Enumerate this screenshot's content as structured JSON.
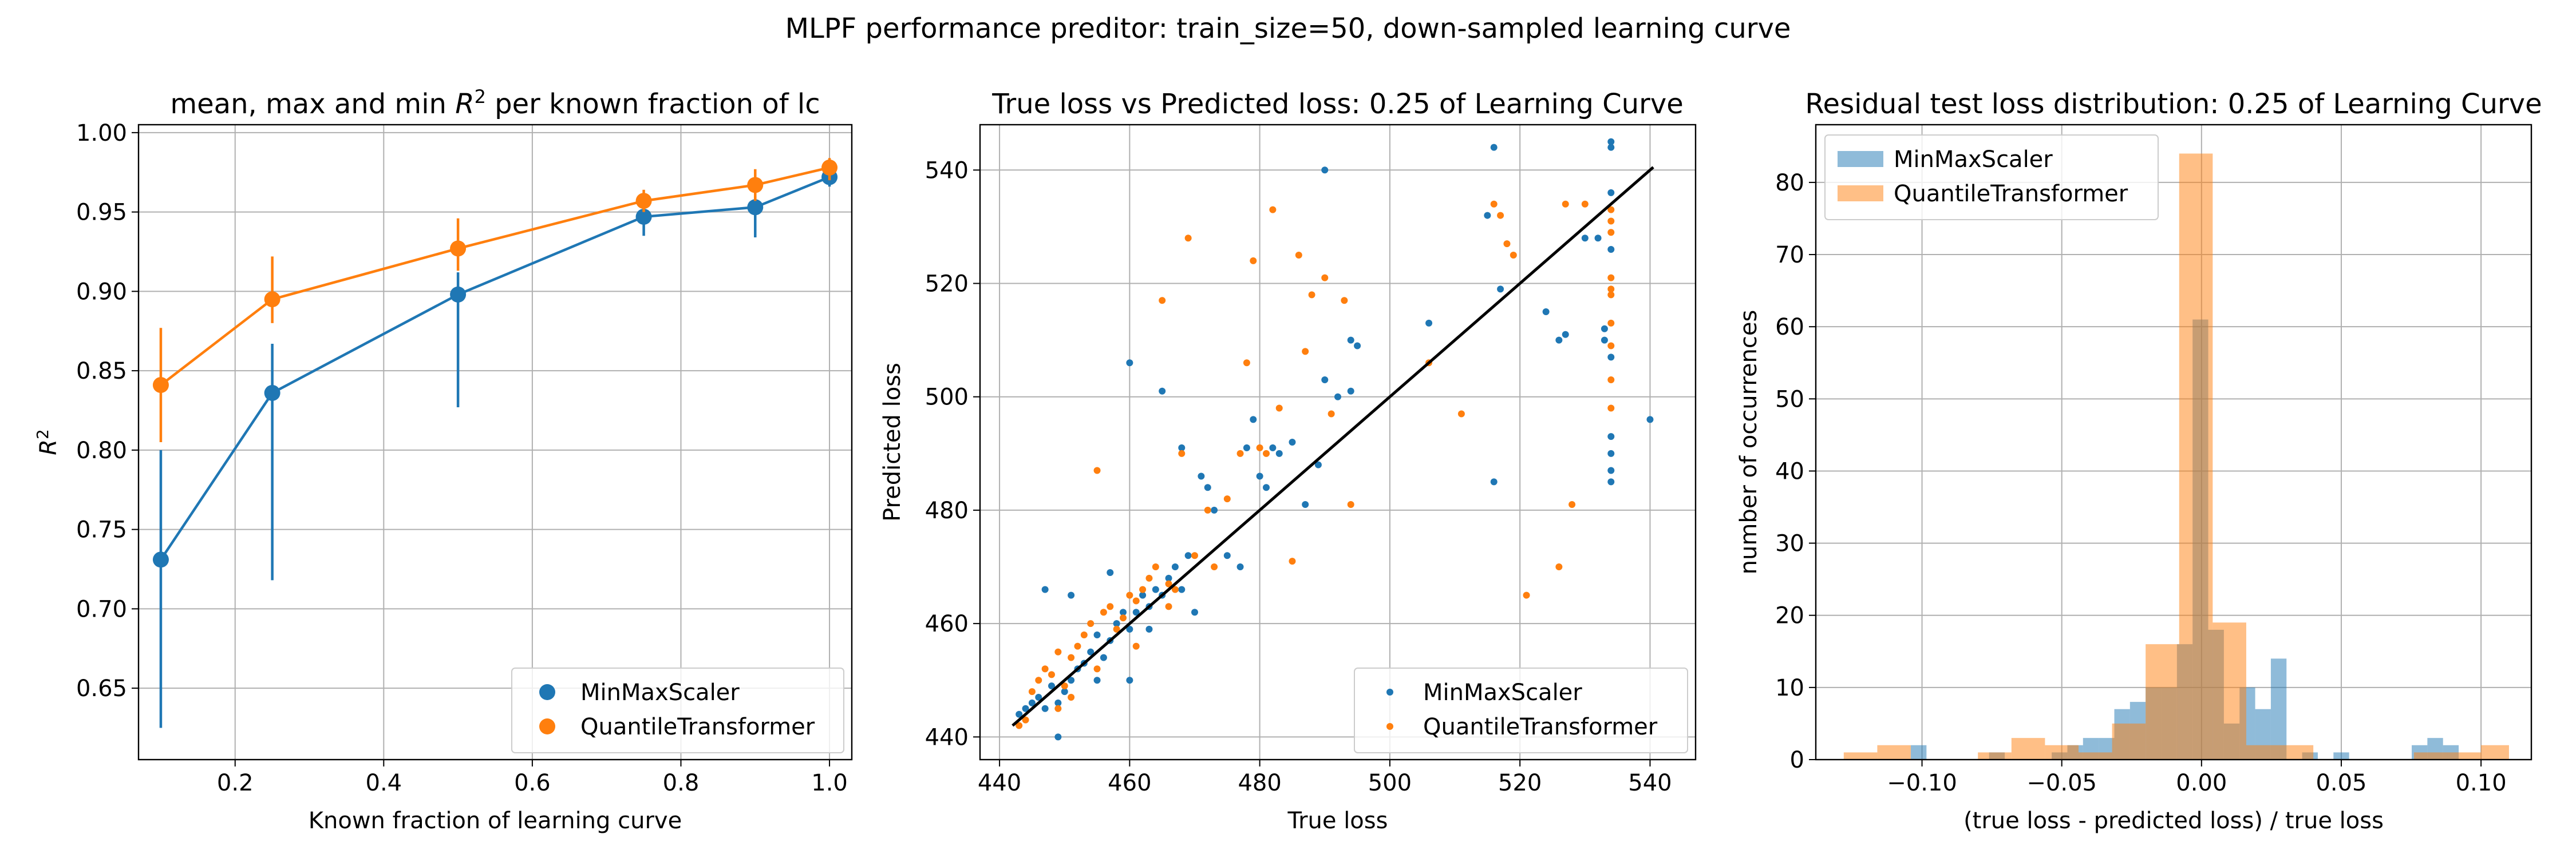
{
  "suptitle": "MLPF performance preditor: train_size=50, down-sampled learning curve",
  "colors": {
    "blue": "#1f77b4",
    "orange": "#ff7f0e",
    "fit_line": "#000000",
    "grid": "#b0b0b0"
  },
  "chart_data": [
    {
      "type": "line",
      "title_prefix": "mean, max and min ",
      "title_math": "R",
      "title_sup": "2",
      "title_suffix": " per known fraction of lc",
      "xlabel": "Known fraction of learning curve",
      "ylabel": "R",
      "ylabel_sup": "2",
      "xlim": [
        0.07,
        1.03
      ],
      "ylim": [
        0.605,
        1.005
      ],
      "xticks": [
        0.2,
        0.4,
        0.6,
        0.8,
        1.0
      ],
      "xtick_labels": [
        "0.2",
        "0.4",
        "0.6",
        "0.8",
        "1.0"
      ],
      "yticks": [
        0.65,
        0.7,
        0.75,
        0.8,
        0.85,
        0.9,
        0.95,
        1.0
      ],
      "ytick_labels": [
        "0.65",
        "0.70",
        "0.75",
        "0.80",
        "0.85",
        "0.90",
        "0.95",
        "1.00"
      ],
      "grid": true,
      "legend": "lower-right",
      "x": [
        0.1,
        0.25,
        0.5,
        0.75,
        0.9,
        1.0
      ],
      "series": [
        {
          "name": "MinMaxScaler",
          "color": "#1f77b4",
          "mean": [
            0.731,
            0.836,
            0.898,
            0.947,
            0.953,
            0.972
          ],
          "min": [
            0.625,
            0.718,
            0.827,
            0.935,
            0.934,
            0.966
          ],
          "max": [
            0.8,
            0.867,
            0.912,
            0.953,
            0.96,
            0.978
          ]
        },
        {
          "name": "QuantileTransformer",
          "color": "#ff7f0e",
          "mean": [
            0.841,
            0.895,
            0.927,
            0.957,
            0.967,
            0.978
          ],
          "min": [
            0.805,
            0.88,
            0.913,
            0.95,
            0.957,
            0.97
          ],
          "max": [
            0.877,
            0.922,
            0.946,
            0.964,
            0.977,
            0.984
          ]
        }
      ]
    },
    {
      "type": "scatter",
      "title": "True loss vs Predicted loss: 0.25 of Learning Curve",
      "xlabel": "True loss",
      "ylabel": "Predicted loss",
      "xlim": [
        437,
        547
      ],
      "ylim": [
        436,
        548
      ],
      "xticks": [
        440,
        460,
        480,
        500,
        520,
        540
      ],
      "xtick_labels": [
        "440",
        "460",
        "480",
        "500",
        "520",
        "540"
      ],
      "yticks": [
        440,
        460,
        480,
        500,
        520,
        540
      ],
      "ytick_labels": [
        "440",
        "460",
        "480",
        "500",
        "520",
        "540"
      ],
      "grid": true,
      "legend": "lower-right",
      "fit_line": {
        "x": [
          442,
          540.5
        ],
        "y": [
          442,
          540.5
        ]
      },
      "series": [
        {
          "name": "MinMaxScaler",
          "color": "#1f77b4",
          "points": [
            [
              443,
              444
            ],
            [
              444,
              445
            ],
            [
              445,
              446
            ],
            [
              446,
              447
            ],
            [
              447,
              445
            ],
            [
              448,
              449
            ],
            [
              449,
              446
            ],
            [
              449,
              440
            ],
            [
              450,
              448
            ],
            [
              451,
              450
            ],
            [
              452,
              452
            ],
            [
              453,
              453
            ],
            [
              454,
              455
            ],
            [
              455,
              458
            ],
            [
              455,
              450
            ],
            [
              456,
              454
            ],
            [
              457,
              457
            ],
            [
              458,
              460
            ],
            [
              459,
              462
            ],
            [
              460,
              459
            ],
            [
              460,
              450
            ],
            [
              461,
              462
            ],
            [
              462,
              465
            ],
            [
              463,
              463
            ],
            [
              464,
              466
            ],
            [
              465,
              465
            ],
            [
              466,
              468
            ],
            [
              467,
              470
            ],
            [
              468,
              466
            ],
            [
              469,
              472
            ],
            [
              470,
              462
            ],
            [
              471,
              486
            ],
            [
              472,
              484
            ],
            [
              473,
              480
            ],
            [
              475,
              472
            ],
            [
              477,
              470
            ],
            [
              479,
              496
            ],
            [
              480,
              486
            ],
            [
              481,
              484
            ],
            [
              483,
              490
            ],
            [
              485,
              492
            ],
            [
              487,
              481
            ],
            [
              489,
              488
            ],
            [
              490,
              503
            ],
            [
              492,
              500
            ],
            [
              494,
              510
            ],
            [
              495,
              509
            ],
            [
              506,
              513
            ],
            [
              516,
              485
            ],
            [
              516,
              544
            ],
            [
              517,
              519
            ],
            [
              524,
              515
            ],
            [
              526,
              510
            ],
            [
              527,
              511
            ],
            [
              530,
              528
            ],
            [
              532,
              528
            ],
            [
              533,
              512
            ],
            [
              533,
              510
            ],
            [
              534,
              545
            ],
            [
              534,
              544
            ],
            [
              534,
              526
            ],
            [
              534,
              493
            ],
            [
              534,
              490
            ],
            [
              534,
              487
            ],
            [
              534,
              485
            ],
            [
              534,
              507
            ],
            [
              534,
              536
            ],
            [
              540,
              496
            ],
            [
              490,
              540
            ],
            [
              460,
              506
            ],
            [
              465,
              501
            ],
            [
              447,
              466
            ],
            [
              451,
              465
            ],
            [
              457,
              469
            ],
            [
              463,
              459
            ],
            [
              468,
              491
            ],
            [
              478,
              491
            ],
            [
              482,
              491
            ],
            [
              494,
              501
            ],
            [
              515,
              532
            ]
          ]
        },
        {
          "name": "QuantileTransformer",
          "color": "#ff7f0e",
          "points": [
            [
              443,
              442
            ],
            [
              444,
              443
            ],
            [
              445,
              448
            ],
            [
              446,
              450
            ],
            [
              447,
              452
            ],
            [
              448,
              451
            ],
            [
              449,
              455
            ],
            [
              450,
              449
            ],
            [
              451,
              454
            ],
            [
              452,
              456
            ],
            [
              453,
              458
            ],
            [
              454,
              460
            ],
            [
              455,
              487
            ],
            [
              456,
              462
            ],
            [
              457,
              463
            ],
            [
              458,
              459
            ],
            [
              459,
              461
            ],
            [
              460,
              465
            ],
            [
              461,
              464
            ],
            [
              462,
              466
            ],
            [
              463,
              468
            ],
            [
              464,
              470
            ],
            [
              465,
              517
            ],
            [
              466,
              467
            ],
            [
              467,
              466
            ],
            [
              468,
              490
            ],
            [
              469,
              528
            ],
            [
              470,
              472
            ],
            [
              472,
              480
            ],
            [
              475,
              482
            ],
            [
              478,
              506
            ],
            [
              479,
              524
            ],
            [
              481,
              490
            ],
            [
              482,
              533
            ],
            [
              483,
              498
            ],
            [
              485,
              471
            ],
            [
              486,
              525
            ],
            [
              487,
              508
            ],
            [
              488,
              518
            ],
            [
              490,
              521
            ],
            [
              491,
              497
            ],
            [
              493,
              517
            ],
            [
              494,
              481
            ],
            [
              506,
              506
            ],
            [
              511,
              497
            ],
            [
              516,
              534
            ],
            [
              517,
              532
            ],
            [
              518,
              527
            ],
            [
              519,
              525
            ],
            [
              521,
              465
            ],
            [
              526,
              470
            ],
            [
              527,
              534
            ],
            [
              528,
              481
            ],
            [
              530,
              534
            ],
            [
              534,
              531
            ],
            [
              534,
              521
            ],
            [
              534,
              518
            ],
            [
              534,
              513
            ],
            [
              534,
              533
            ],
            [
              534,
              519
            ],
            [
              534,
              509
            ],
            [
              534,
              503
            ],
            [
              534,
              498
            ],
            [
              534,
              529
            ],
            [
              449,
              445
            ],
            [
              451,
              447
            ],
            [
              455,
              452
            ],
            [
              461,
              456
            ],
            [
              466,
              463
            ],
            [
              473,
              470
            ],
            [
              477,
              490
            ],
            [
              480,
              491
            ]
          ]
        }
      ]
    },
    {
      "type": "histogram",
      "title": "Residual test loss distribution: 0.25 of Learning Curve",
      "xlabel": "(true loss - predicted loss) / true loss",
      "ylabel": "number of occurrences",
      "xlim": [
        -0.138,
        0.118
      ],
      "ylim": [
        0,
        88
      ],
      "xticks": [
        -0.1,
        -0.05,
        0.0,
        0.05,
        0.1
      ],
      "xtick_labels": [
        "−0.10",
        "−0.05",
        "0.00",
        "0.05",
        "0.10"
      ],
      "yticks": [
        0,
        10,
        20,
        30,
        40,
        50,
        60,
        70,
        80
      ],
      "ytick_labels": [
        "0",
        "10",
        "20",
        "30",
        "40",
        "50",
        "60",
        "70",
        "80"
      ],
      "grid": true,
      "legend": "upper-left",
      "alpha": 0.5,
      "series": [
        {
          "name": "MinMaxScaler",
          "color": "#1f77b4",
          "bins": [
            [
              -0.104,
              -0.0984,
              2
            ],
            [
              -0.076,
              -0.0704,
              1
            ],
            [
              -0.0536,
              -0.048,
              1
            ],
            [
              -0.048,
              -0.0424,
              2
            ],
            [
              -0.0424,
              -0.0368,
              3
            ],
            [
              -0.0368,
              -0.0312,
              3
            ],
            [
              -0.0312,
              -0.0256,
              7
            ],
            [
              -0.0256,
              -0.02,
              8
            ],
            [
              -0.02,
              -0.0144,
              10
            ],
            [
              -0.0144,
              -0.0088,
              10
            ],
            [
              -0.0088,
              -0.0032,
              16
            ],
            [
              -0.0032,
              0.0024,
              61
            ],
            [
              0.0024,
              0.008,
              18
            ],
            [
              0.008,
              0.0136,
              5
            ],
            [
              0.0136,
              0.0192,
              10
            ],
            [
              0.0192,
              0.0248,
              7
            ],
            [
              0.0248,
              0.0304,
              14
            ],
            [
              0.0304,
              0.036,
              0
            ],
            [
              0.036,
              0.0416,
              1
            ],
            [
              0.0416,
              0.0472,
              0
            ],
            [
              0.0472,
              0.0528,
              1
            ],
            [
              0.0528,
              0.0584,
              0
            ],
            [
              0.0584,
              0.064,
              0
            ],
            [
              0.064,
              0.0696,
              0
            ],
            [
              0.0696,
              0.0752,
              0
            ],
            [
              0.0752,
              0.0808,
              2
            ],
            [
              0.0808,
              0.0864,
              3
            ],
            [
              0.0864,
              0.092,
              2
            ]
          ]
        },
        {
          "name": "QuantileTransformer",
          "color": "#ff7f0e",
          "bins": [
            [
              -0.128,
              -0.116,
              1
            ],
            [
              -0.116,
              -0.104,
              2
            ],
            [
              -0.104,
              -0.092,
              0
            ],
            [
              -0.092,
              -0.08,
              0
            ],
            [
              -0.08,
              -0.068,
              1
            ],
            [
              -0.068,
              -0.056,
              3
            ],
            [
              -0.056,
              -0.044,
              2
            ],
            [
              -0.044,
              -0.032,
              1
            ],
            [
              -0.032,
              -0.02,
              5
            ],
            [
              -0.02,
              -0.008,
              16
            ],
            [
              -0.008,
              0.004,
              84
            ],
            [
              0.004,
              0.016,
              19
            ],
            [
              0.016,
              0.028,
              2
            ],
            [
              0.028,
              0.04,
              2
            ],
            [
              0.04,
              0.052,
              0
            ],
            [
              0.052,
              0.064,
              0
            ],
            [
              0.064,
              0.076,
              0
            ],
            [
              0.076,
              0.088,
              1
            ],
            [
              0.088,
              0.1,
              1
            ],
            [
              0.1,
              0.11,
              2
            ]
          ]
        }
      ]
    }
  ]
}
